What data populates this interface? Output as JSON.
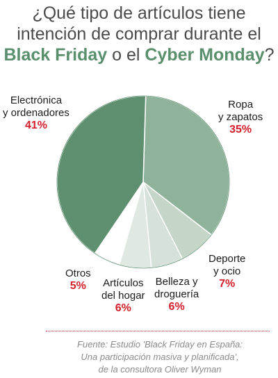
{
  "title": {
    "line1": "¿Qué tipo de artículos tiene",
    "line2": "intención de comprar durante el",
    "line3_part1": "Black Friday",
    "line3_part2": " o el ",
    "line3_part3": "Cyber Monday",
    "line3_part4": "?"
  },
  "source": {
    "line1": "Fuente: Estudio 'Black Friday en España:",
    "line2": "Una participación masiva y planificada',",
    "line3": "de la consultora Oliver Wyman"
  },
  "chart_data": {
    "type": "pie",
    "slices": [
      {
        "key": "ropa",
        "label_lines": [
          "Ropa",
          "y zapatos"
        ],
        "value": 35,
        "value_label": "35%",
        "color": "#8fb29a"
      },
      {
        "key": "deporte",
        "label_lines": [
          "Deporte",
          "y ocio"
        ],
        "value": 7,
        "value_label": "7%",
        "color": "#c5d6c9"
      },
      {
        "key": "belleza",
        "label_lines": [
          "Belleza y",
          "droguería"
        ],
        "value": 6,
        "value_label": "6%",
        "color": "#d6e2d9"
      },
      {
        "key": "hogar",
        "label_lines": [
          "Artículos",
          "del hogar"
        ],
        "value": 6,
        "value_label": "6%",
        "color": "#dfe8e1"
      },
      {
        "key": "otros",
        "label_lines": [
          "Otros"
        ],
        "value": 5,
        "value_label": "5%",
        "color": "#ffffff"
      },
      {
        "key": "electronica",
        "label_lines": [
          "Electrónica",
          "y ordenadores"
        ],
        "value": 41,
        "value_label": "41%",
        "color": "#5e9070"
      }
    ]
  }
}
